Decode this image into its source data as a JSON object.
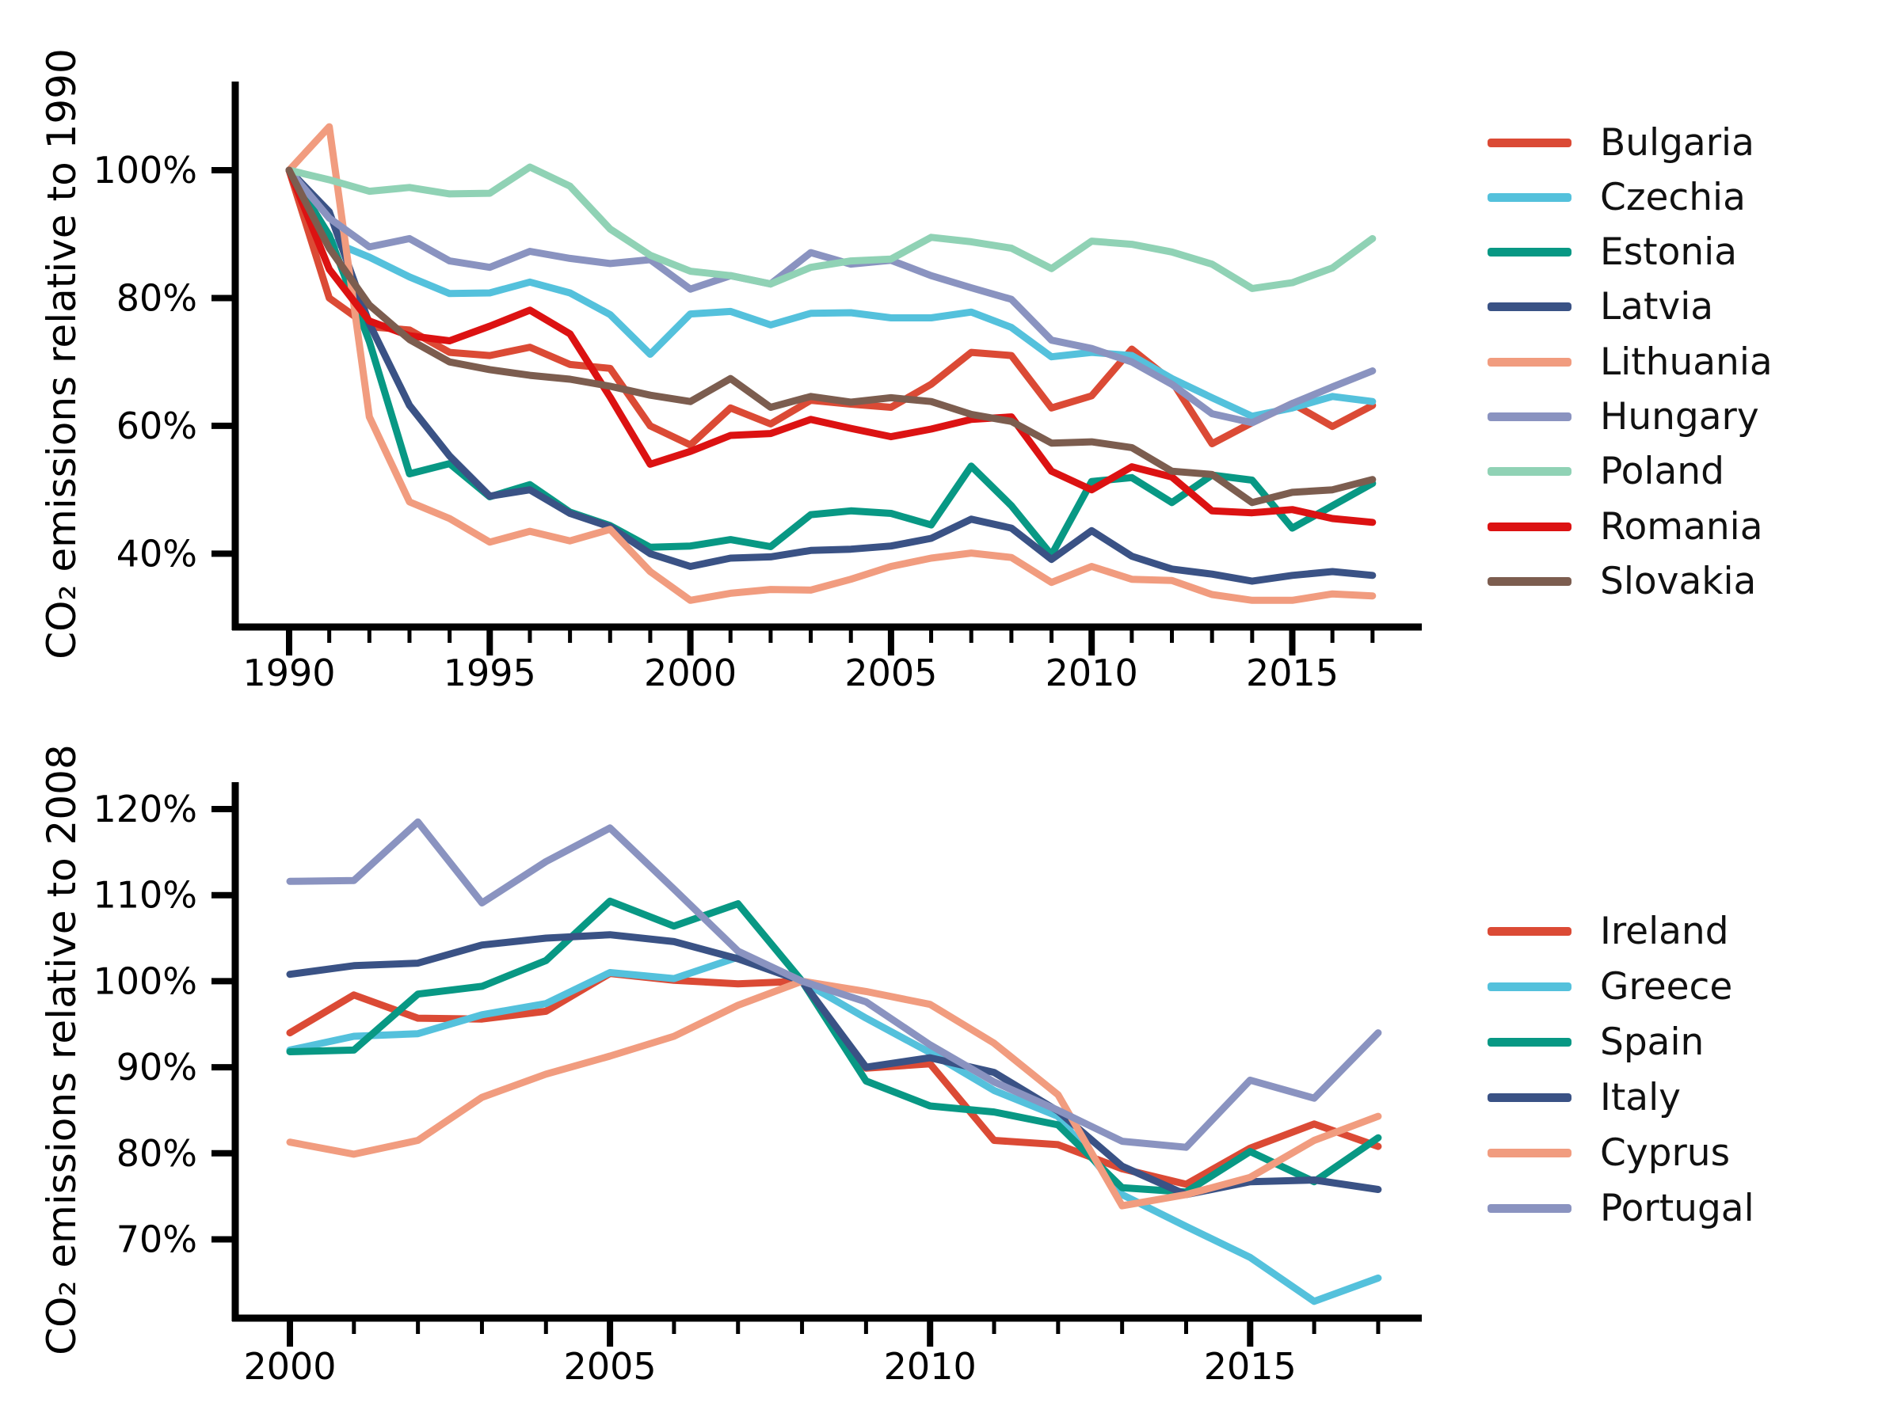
{
  "chart_data": [
    {
      "id": "top-chart",
      "type": "line",
      "title": "",
      "xlabel": "",
      "ylabel": "CO₂ emissions relative to 1990",
      "grid": false,
      "legend_position": "right",
      "xlim": [
        1988.6,
        2018.2
      ],
      "ylim": [
        28.5,
        113.9
      ],
      "x": [
        1990,
        1991,
        1992,
        1993,
        1994,
        1995,
        1996,
        1997,
        1998,
        1999,
        2000,
        2001,
        2002,
        2003,
        2004,
        2005,
        2006,
        2007,
        2008,
        2009,
        2010,
        2011,
        2012,
        2013,
        2014,
        2015,
        2016,
        2017
      ],
      "xticks_major": [
        1990,
        1995,
        2000,
        2005,
        2010,
        2015
      ],
      "yticks": [
        {
          "value": 100,
          "label": "100%"
        },
        {
          "value": 80,
          "label": "80%"
        },
        {
          "value": 60,
          "label": "60%"
        },
        {
          "value": 40,
          "label": "40%"
        }
      ],
      "series": [
        {
          "name": "Bulgaria",
          "color": "#DB4A35",
          "values": [
            100,
            80,
            75.5,
            75,
            71.5,
            71,
            72.3,
            69.6,
            69,
            60,
            57,
            62.8,
            60.3,
            64,
            63.4,
            62.9,
            66.5,
            71.5,
            71,
            62.8,
            64.7,
            72,
            67,
            57.2,
            60.5,
            63.5,
            59.9,
            63.2
          ]
        },
        {
          "name": "Czechia",
          "color": "#54C1DC",
          "values": [
            100,
            89,
            86.4,
            83.3,
            80.7,
            80.8,
            82.5,
            80.8,
            77.4,
            71.2,
            77.5,
            77.9,
            75.8,
            77.6,
            77.7,
            76.9,
            76.9,
            77.8,
            75.4,
            70.8,
            71.5,
            71,
            67.4,
            64.4,
            61.5,
            62.8,
            64.6,
            63.8
          ]
        },
        {
          "name": "Estonia",
          "color": "#089884",
          "values": [
            100,
            89.8,
            73.2,
            52.5,
            54.1,
            48.9,
            50.8,
            46.5,
            44.4,
            41,
            41.2,
            42.2,
            41.1,
            46.1,
            46.7,
            46.3,
            44.5,
            53.7,
            47.5,
            39.8,
            51.3,
            51.9,
            48,
            52.3,
            51.5,
            44,
            47.5,
            51
          ]
        },
        {
          "name": "Latvia",
          "color": "#3A5285",
          "values": [
            100,
            93.5,
            76,
            63.2,
            55.3,
            49,
            50,
            46.3,
            44.2,
            40,
            38,
            39.3,
            39.5,
            40.5,
            40.7,
            41.2,
            42.4,
            45.4,
            44,
            39.1,
            43.6,
            39.6,
            37.6,
            36.8,
            35.7,
            36.6,
            37.2,
            36.6
          ]
        },
        {
          "name": "Lithuania",
          "color": "#F19C7F",
          "values": [
            100,
            106.8,
            61.4,
            48.1,
            45.5,
            41.8,
            43.5,
            42,
            43.8,
            37.2,
            32.7,
            33.8,
            34.4,
            34.3,
            36,
            38,
            39.3,
            40.1,
            39.4,
            35.5,
            38,
            36,
            35.8,
            33.6,
            32.7,
            32.7,
            33.7,
            33.4
          ]
        },
        {
          "name": "Hungary",
          "color": "#8A93C0",
          "values": [
            100,
            92.5,
            88,
            89.3,
            85.8,
            84.8,
            87.3,
            86.2,
            85.4,
            86,
            81.4,
            83.5,
            82.2,
            87.1,
            85.3,
            85.9,
            83.5,
            81.6,
            79.8,
            73.4,
            72.1,
            70,
            66.5,
            61.9,
            60.5,
            63.5,
            66.1,
            68.6
          ]
        },
        {
          "name": "Poland",
          "color": "#90D2B5",
          "values": [
            100,
            98.5,
            96.7,
            97.3,
            96.3,
            96.4,
            100.5,
            97.5,
            90.8,
            86.7,
            84.2,
            83.5,
            82.2,
            84.8,
            85.8,
            86.1,
            89.5,
            88.8,
            87.8,
            84.6,
            88.9,
            88.4,
            87.2,
            85.3,
            81.5,
            82.4,
            84.7,
            89.3
          ]
        },
        {
          "name": "Romania",
          "color": "#DC1212",
          "values": [
            100,
            84.5,
            76.4,
            74.1,
            73.3,
            75.6,
            78.1,
            74.4,
            64.5,
            54,
            56,
            58.5,
            58.8,
            61,
            59.6,
            58.3,
            59.5,
            61,
            61.4,
            52.9,
            50,
            53.6,
            52,
            46.7,
            46.4,
            46.9,
            45.5,
            44.9
          ]
        },
        {
          "name": "Slovakia",
          "color": "#7C5D4F",
          "values": [
            100,
            87.8,
            78.9,
            73.5,
            70,
            68.8,
            67.9,
            67.3,
            66.2,
            64.8,
            63.8,
            67.4,
            62.9,
            64.6,
            63.7,
            64.4,
            63.8,
            61.8,
            60.7,
            57.3,
            57.5,
            56.6,
            52.9,
            52.4,
            48,
            49.6,
            50,
            51.6
          ]
        }
      ]
    },
    {
      "id": "bottom-chart",
      "type": "line",
      "title": "",
      "xlabel": "",
      "ylabel": "CO₂ emissions relative to 2008",
      "grid": false,
      "legend_position": "right",
      "xlim": [
        1999.1,
        2018.2
      ],
      "ylim": [
        60.8,
        123.1
      ],
      "x": [
        2000,
        2001,
        2002,
        2003,
        2004,
        2005,
        2006,
        2007,
        2008,
        2009,
        2010,
        2011,
        2012,
        2013,
        2014,
        2015,
        2016,
        2017
      ],
      "xticks_major": [
        2000,
        2005,
        2010,
        2015
      ],
      "yticks": [
        {
          "value": 120,
          "label": "120%"
        },
        {
          "value": 110,
          "label": "110%"
        },
        {
          "value": 100,
          "label": "100%"
        },
        {
          "value": 90,
          "label": "90%"
        },
        {
          "value": 80,
          "label": "80%"
        },
        {
          "value": 70,
          "label": "70%"
        }
      ],
      "series": [
        {
          "name": "Ireland",
          "color": "#DB4A35",
          "values": [
            94,
            98.4,
            95.7,
            95.6,
            96.5,
            100.9,
            100.1,
            99.7,
            100,
            89.9,
            90.4,
            81.5,
            81,
            78.2,
            76.4,
            80.6,
            83.4,
            80.8
          ]
        },
        {
          "name": "Greece",
          "color": "#54C1DC",
          "values": [
            92,
            93.6,
            93.9,
            96.1,
            97.4,
            101,
            100.3,
            102.8,
            100,
            95.7,
            91.7,
            87.3,
            84.3,
            75.2,
            71.5,
            67.9,
            62.8,
            65.5
          ]
        },
        {
          "name": "Spain",
          "color": "#089884",
          "values": [
            91.8,
            92,
            98.5,
            99.4,
            102.4,
            109.3,
            106.4,
            109,
            100,
            88.4,
            85.5,
            84.8,
            83.3,
            76,
            75.5,
            80.2,
            76.7,
            81.8
          ]
        },
        {
          "name": "Italy",
          "color": "#3A5285",
          "values": [
            100.8,
            101.8,
            102.1,
            104.2,
            105,
            105.4,
            104.6,
            102.6,
            100,
            90,
            91.1,
            89.4,
            84.9,
            78.5,
            75.2,
            76.7,
            76.9,
            75.8
          ]
        },
        {
          "name": "Cyprus",
          "color": "#F19C7F",
          "values": [
            81.3,
            79.9,
            81.5,
            86.5,
            89.2,
            91.3,
            93.6,
            97.2,
            100,
            98.8,
            97.3,
            92.8,
            86.8,
            73.9,
            75.2,
            77.2,
            81.5,
            84.3
          ]
        },
        {
          "name": "Portugal",
          "color": "#8A93C0",
          "values": [
            111.6,
            111.7,
            118.5,
            109.1,
            113.9,
            117.8,
            110.7,
            103.5,
            100,
            97.6,
            92.6,
            88.3,
            85,
            81.4,
            80.7,
            88.5,
            86.4,
            94
          ]
        }
      ]
    }
  ]
}
